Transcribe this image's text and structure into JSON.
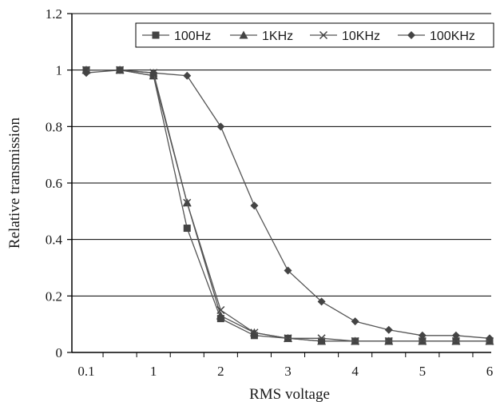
{
  "chart_data": {
    "type": "line",
    "title": "",
    "xlabel": "RMS voltage",
    "ylabel": "Relative transmission",
    "x_ticks": [
      "0.1",
      "1",
      "2",
      "3",
      "4",
      "5",
      "6"
    ],
    "y_ticks": [
      "0",
      "0.2",
      "0.4",
      "0.6",
      "0.8",
      "1",
      "1.2"
    ],
    "ylim": [
      0,
      1.2
    ],
    "grid": "horizontal",
    "legend_position": "top-right",
    "x": [
      0.1,
      0.5,
      1,
      1.5,
      2,
      2.5,
      3,
      3.5,
      4,
      4.5,
      5,
      5.5,
      6
    ],
    "series": [
      {
        "name": "100Hz",
        "marker": "square",
        "values": [
          1.0,
          1.0,
          0.98,
          0.44,
          0.12,
          0.06,
          0.05,
          0.04,
          0.04,
          0.04,
          0.04,
          0.04,
          0.04
        ]
      },
      {
        "name": "1KHz",
        "marker": "triangle",
        "values": [
          1.0,
          1.0,
          0.98,
          0.53,
          0.13,
          0.07,
          0.05,
          0.04,
          0.04,
          0.04,
          0.04,
          0.04,
          0.04
        ]
      },
      {
        "name": "10KHz",
        "marker": "x",
        "values": [
          1.0,
          1.0,
          0.99,
          0.53,
          0.15,
          0.07,
          0.05,
          0.05,
          0.04,
          0.04,
          0.04,
          0.04,
          0.04
        ]
      },
      {
        "name": "100KHz",
        "marker": "diamond",
        "values": [
          0.99,
          1.0,
          0.99,
          0.98,
          0.8,
          0.52,
          0.29,
          0.18,
          0.11,
          0.08,
          0.06,
          0.06,
          0.05
        ]
      }
    ],
    "colors": {
      "line": "#555555",
      "marker": "#444444",
      "grid": "#000000",
      "axis": "#000000"
    }
  }
}
